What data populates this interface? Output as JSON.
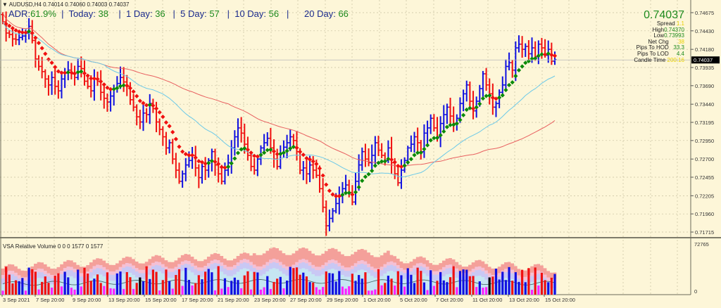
{
  "header": {
    "symbol_line": "AUDUSD,H4  0.74014 0.74060 0.74003 0.74037",
    "adr_label": "ADR:",
    "adr_value": "61.9%",
    "today_label": "Today:",
    "today_value": "38",
    "d1_label": "1 Day:",
    "d1_value": "36",
    "d5_label": "5 Day:",
    "d5_value": "57",
    "d10_label": "10 Day:",
    "d10_value": "56",
    "d20_label": "20 Day:",
    "d20_value": "66"
  },
  "info_panel": {
    "price": "0.74037",
    "spread_label": "Spread",
    "spread_value": "1.1",
    "high_label": "High",
    "high_value": "0.74370",
    "low_label": "Low",
    "low_value": "0.73993",
    "netchg_label": "Net Chg",
    "netchg_value": "38",
    "hod_label": "Pips To HOD",
    "hod_value": "33.3",
    "lod_label": "Pips To LOD",
    "lod_value": "4.4",
    "candle_label": "Candle Time",
    "candle_value": "200:16"
  },
  "volume_panel": {
    "title": "VSA Relative Volume 0 0 0 1577 0 1577",
    "axis_max": "72765",
    "axis_min": "0"
  },
  "colors": {
    "background": "#fdf6d8",
    "bull_bar": "#1010e0",
    "bear_bar": "#f01010",
    "ma_up": "#0a8a0a",
    "ma_down": "#f01010",
    "ma_cyan": "#6cc9e8",
    "ma_red": "#e86060",
    "current_price_box": "#000000"
  },
  "chart_data": {
    "type": "ohlc",
    "title": "AUDUSD,H4",
    "xlabel": "",
    "ylabel": "Price",
    "ylim": [
      0.716,
      0.7485
    ],
    "current_price": 0.74037,
    "y_ticks": [
      "0.74675",
      "0.74430",
      "0.74180",
      "0.73935",
      "0.73690",
      "0.73440",
      "0.73195",
      "0.72950",
      "0.72700",
      "0.72455",
      "0.72205",
      "0.71960",
      "0.71715"
    ],
    "x_ticks": [
      "3 Sep 2021",
      "7 Sep 20:00",
      "9 Sep 20:00",
      "13 Sep 20:00",
      "15 Sep 20:00",
      "17 Sep 20:00",
      "21 Sep 20:00",
      "23 Sep 20:00",
      "27 Sep 20:00",
      "29 Sep 20:00",
      "1 Oct 20:00",
      "5 Oct 20:00",
      "7 Oct 20:00",
      "11 Oct 20:00",
      "13 Oct 20:00",
      "15 Oct 20:00"
    ],
    "closes": [
      0.7455,
      0.744,
      0.7438,
      0.7432,
      0.7431,
      0.7434,
      0.7436,
      0.744,
      0.7449,
      0.743,
      0.7405,
      0.7395,
      0.7388,
      0.7378,
      0.737,
      0.738,
      0.7368,
      0.7362,
      0.7378,
      0.7386,
      0.739,
      0.7385,
      0.738,
      0.7395,
      0.7392,
      0.7375,
      0.7368,
      0.7362,
      0.7378,
      0.7375,
      0.736,
      0.7352,
      0.7347,
      0.7355,
      0.7365,
      0.7372,
      0.738,
      0.7374,
      0.7368,
      0.735,
      0.734,
      0.7327,
      0.732,
      0.7332,
      0.733,
      0.7345,
      0.7338,
      0.732,
      0.731,
      0.73,
      0.7285,
      0.7292,
      0.727,
      0.7255,
      0.724,
      0.725,
      0.7262,
      0.7268,
      0.7275,
      0.7258,
      0.7245,
      0.726,
      0.7255,
      0.7268,
      0.728,
      0.7262,
      0.725,
      0.724,
      0.7255,
      0.7265,
      0.7285,
      0.73,
      0.7312,
      0.7305,
      0.729,
      0.7275,
      0.726,
      0.7255,
      0.727,
      0.7285,
      0.7292,
      0.7298,
      0.7285,
      0.727,
      0.726,
      0.7278,
      0.7286,
      0.7292,
      0.73,
      0.7295,
      0.728,
      0.7255,
      0.7258,
      0.725,
      0.7262,
      0.7255,
      0.7248,
      0.723,
      0.7205,
      0.718,
      0.719,
      0.72,
      0.721,
      0.722,
      0.723,
      0.7235,
      0.7225,
      0.7212,
      0.724,
      0.7262,
      0.728,
      0.727,
      0.7265,
      0.7275,
      0.7292,
      0.7282,
      0.7275,
      0.7268,
      0.7285,
      0.7265,
      0.725,
      0.7238,
      0.7255,
      0.7268,
      0.7285,
      0.729,
      0.73,
      0.7292,
      0.728,
      0.7305,
      0.7312,
      0.7325,
      0.7312,
      0.73,
      0.7318,
      0.733,
      0.734,
      0.7328,
      0.7318,
      0.7325,
      0.7345,
      0.7358,
      0.737,
      0.7348,
      0.7335,
      0.7348,
      0.7365,
      0.7385,
      0.737,
      0.7358,
      0.734,
      0.7345,
      0.736,
      0.737,
      0.7395,
      0.74,
      0.739,
      0.742,
      0.7425,
      0.7418,
      0.7422,
      0.7412,
      0.742,
      0.7408,
      0.7425,
      0.742,
      0.741,
      0.7418,
      0.7402,
      0.7404
    ]
  }
}
